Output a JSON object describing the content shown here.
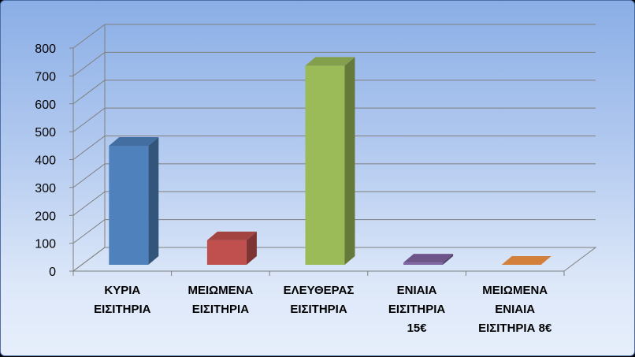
{
  "chart_data": {
    "type": "bar",
    "title": "",
    "xlabel": "",
    "ylabel": "",
    "ylim": [
      0,
      800
    ],
    "y_ticks": [
      0,
      100,
      200,
      300,
      400,
      500,
      600,
      700,
      800
    ],
    "grid": true,
    "three_d": true,
    "categories": [
      [
        "ΚΥΡΙΑ",
        "ΕΙΣΙΤΗΡΙΑ"
      ],
      [
        "ΜΕΙΩΜΕΝΑ",
        "ΕΙΣΙΤΗΡΙΑ"
      ],
      [
        "ΕΛΕΥΘΕΡΑΣ",
        "ΕΙΣΙΤΗΡΙΑ"
      ],
      [
        "ΕΝΙΑΙΑ",
        "ΕΙΣΙΤΗΡΙΑ",
        "15€"
      ],
      [
        "ΜΕΙΩΜΕΝΑ",
        "ΕΝΙΑΙΑ",
        "ΕΙΣΙΤΗΡΙΑ 8€"
      ]
    ],
    "values": [
      427,
      88,
      714,
      8,
      0
    ],
    "colors": [
      "#4f81bd",
      "#c0504d",
      "#9bbb59",
      "#8064a2",
      "#f79646"
    ]
  }
}
